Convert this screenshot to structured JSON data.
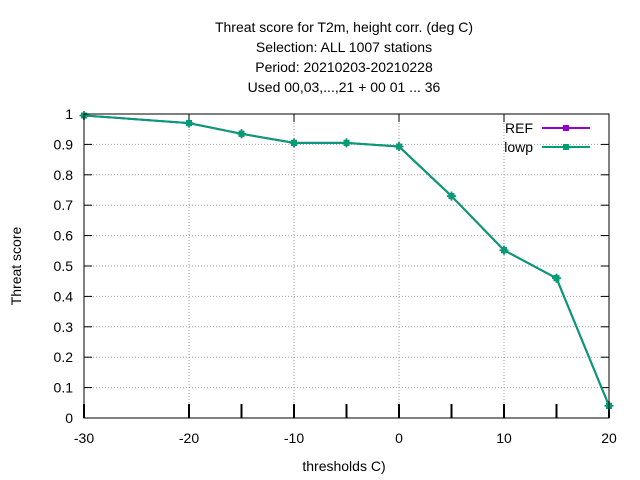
{
  "chart_data": {
    "type": "line",
    "title_lines": [
      "Threat score  for T2m, height corr. (deg C)",
      "Selection: ALL   1007 stations",
      "Period: 20210203-20210228",
      "Used  00,03,...,21  + 00 01 ... 36"
    ],
    "xlabel": "thresholds C)",
    "ylabel": "Threat score",
    "xlim": [
      -30,
      20
    ],
    "ylim": [
      0,
      1
    ],
    "x_ticks": [
      -30,
      -20,
      -10,
      0,
      10,
      20
    ],
    "y_ticks": [
      0,
      0.1,
      0.2,
      0.3,
      0.4,
      0.5,
      0.6,
      0.7,
      0.8,
      0.9,
      1
    ],
    "grid": true,
    "legend_position": "top-right",
    "series": [
      {
        "name": "REF",
        "color": "#9400d3",
        "x": [
          -30,
          -20,
          -15,
          -10,
          -5,
          0,
          5,
          10,
          15,
          20
        ],
        "y": [
          0.995,
          0.97,
          0.935,
          0.905,
          0.905,
          0.893,
          0.73,
          0.552,
          0.46,
          0.04
        ]
      },
      {
        "name": "lowp",
        "color": "#009e73",
        "x": [
          -30,
          -20,
          -15,
          -10,
          -5,
          0,
          5,
          10,
          15,
          20
        ],
        "y": [
          0.995,
          0.97,
          0.935,
          0.905,
          0.905,
          0.893,
          0.73,
          0.552,
          0.46,
          0.04
        ]
      }
    ]
  }
}
